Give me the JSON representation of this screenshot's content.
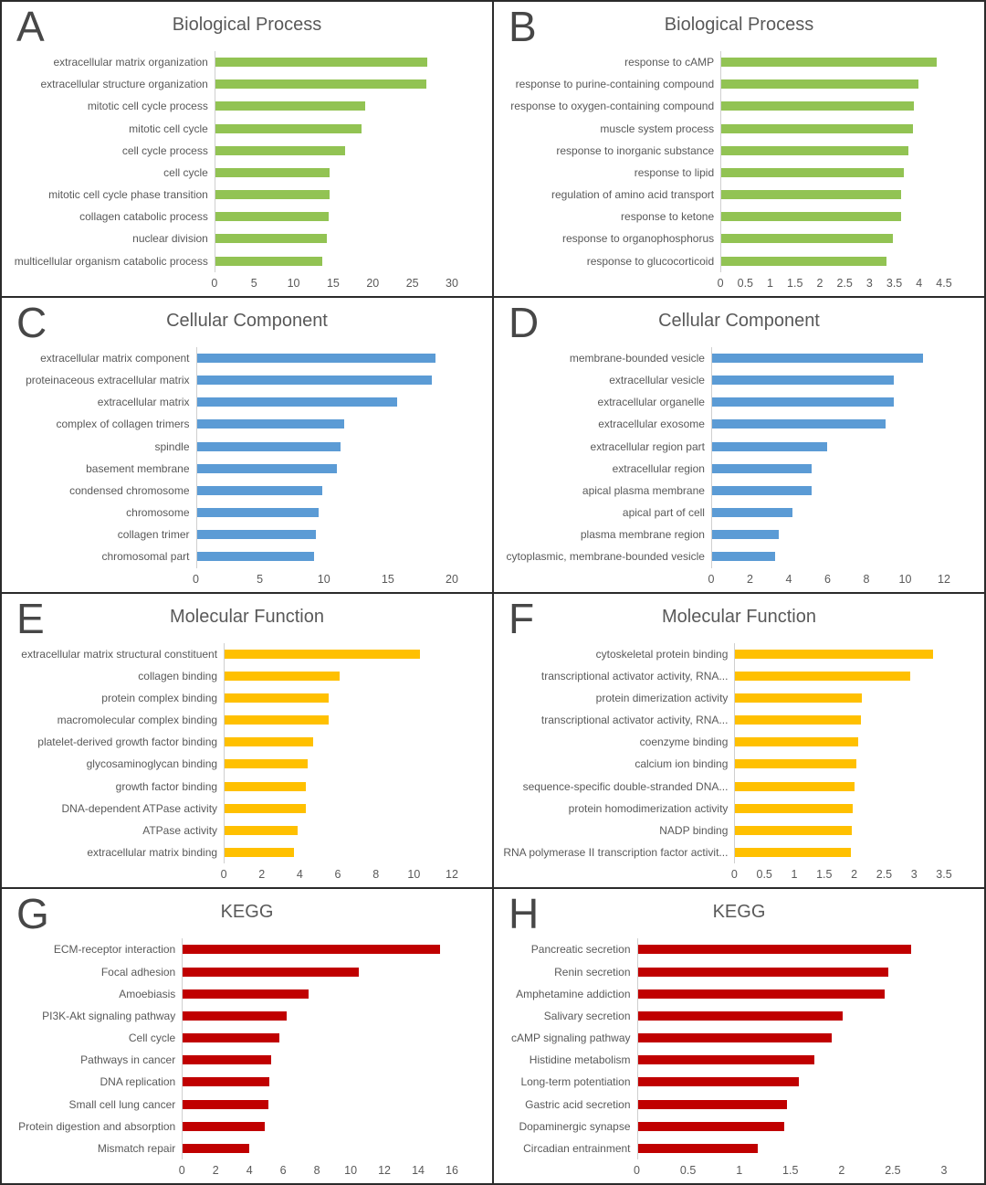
{
  "figure": {
    "kind": "go-kegg-enrichment-figure"
  },
  "chart_data": [
    {
      "panel": "A",
      "type": "bar",
      "orientation": "horizontal",
      "title": "Biological Process",
      "color": "#92C353",
      "categories": [
        "extracellular matrix organization",
        "extracellular structure organization",
        "mitotic cell cycle process",
        "mitotic cell cycle",
        "cell cycle process",
        "cell cycle",
        "mitotic cell cycle phase transition",
        "collagen catabolic process",
        "nuclear division",
        "multicellular organism catabolic process"
      ],
      "values": [
        26.9,
        26.8,
        19.0,
        18.6,
        16.5,
        14.5,
        14.5,
        14.4,
        14.2,
        13.6
      ],
      "xlim": [
        0,
        30
      ],
      "xticks": [
        0,
        5,
        10,
        15,
        20,
        25,
        30
      ],
      "xtick_labels": [
        "0",
        "5",
        "10",
        "15",
        "20",
        "25",
        "30"
      ],
      "grid": false,
      "legend": false,
      "label_col_pct": 43
    },
    {
      "panel": "B",
      "type": "bar",
      "orientation": "horizontal",
      "title": "Biological Process",
      "color": "#92C353",
      "categories": [
        "response to cAMP",
        "response to purine-containing compound",
        "response to oxygen-containing compound",
        "muscle system process",
        "response to inorganic substance",
        "response to lipid",
        "regulation of amino acid transport",
        "response to ketone",
        "response to organophosphorus",
        "response to glucocorticoid"
      ],
      "values": [
        4.35,
        3.98,
        3.9,
        3.87,
        3.79,
        3.7,
        3.64,
        3.64,
        3.47,
        3.35
      ],
      "xlim": [
        0,
        4.5
      ],
      "xticks": [
        0,
        0.5,
        1,
        1.5,
        2,
        2.5,
        3,
        3.5,
        4,
        4.5
      ],
      "xtick_labels": [
        "0",
        "0.5",
        "1",
        "1.5",
        "2",
        "2.5",
        "3",
        "3.5",
        "4",
        "4.5"
      ],
      "grid": false,
      "legend": false,
      "label_col_pct": 46
    },
    {
      "panel": "C",
      "type": "bar",
      "orientation": "horizontal",
      "title": "Cellular Component",
      "color": "#5B9BD5",
      "categories": [
        "extracellular matrix component",
        "proteinaceous extracellular matrix",
        "extracellular matrix",
        "complex of collagen trimers",
        "spindle",
        "basement membrane",
        "condensed chromosome",
        "chromosome",
        "collagen trimer",
        "chromosomal part"
      ],
      "values": [
        18.7,
        18.4,
        15.7,
        11.6,
        11.3,
        11.0,
        9.9,
        9.6,
        9.4,
        9.2
      ],
      "xlim": [
        0,
        20
      ],
      "xticks": [
        0,
        5,
        10,
        15,
        20
      ],
      "xtick_labels": [
        "0",
        "5",
        "10",
        "15",
        "20"
      ],
      "grid": false,
      "legend": false,
      "label_col_pct": 39
    },
    {
      "panel": "D",
      "type": "bar",
      "orientation": "horizontal",
      "title": "Cellular Component",
      "color": "#5B9BD5",
      "categories": [
        "membrane-bounded vesicle",
        "extracellular vesicle",
        "extracellular organelle",
        "extracellular exosome",
        "extracellular region part",
        "extracellular region",
        "apical plasma membrane",
        "apical part of cell",
        "plasma membrane region",
        "cytoplasmic, membrane-bounded vesicle"
      ],
      "values": [
        10.9,
        9.4,
        9.4,
        9.0,
        6.0,
        5.2,
        5.2,
        4.2,
        3.5,
        3.3
      ],
      "xlim": [
        0,
        12
      ],
      "xticks": [
        0,
        2,
        4,
        6,
        8,
        10,
        12
      ],
      "xtick_labels": [
        "0",
        "2",
        "4",
        "6",
        "8",
        "10",
        "12"
      ],
      "grid": false,
      "legend": false,
      "label_col_pct": 44
    },
    {
      "panel": "E",
      "type": "bar",
      "orientation": "horizontal",
      "title": "Molecular Function",
      "color": "#FFC000",
      "categories": [
        "extracellular matrix structural constituent",
        "collagen binding",
        "protein complex binding",
        "macromolecular complex binding",
        "platelet-derived growth factor binding",
        "glycosaminoglycan binding",
        "growth factor binding",
        "DNA-dependent ATPase activity",
        "ATPase activity",
        "extracellular matrix binding"
      ],
      "values": [
        10.3,
        6.1,
        5.5,
        5.5,
        4.7,
        4.4,
        4.3,
        4.3,
        3.9,
        3.7
      ],
      "xlim": [
        0,
        12
      ],
      "xticks": [
        0,
        2,
        4,
        6,
        8,
        10,
        12
      ],
      "xtick_labels": [
        "0",
        "2",
        "4",
        "6",
        "8",
        "10",
        "12"
      ],
      "grid": false,
      "legend": false,
      "label_col_pct": 45
    },
    {
      "panel": "F",
      "type": "bar",
      "orientation": "horizontal",
      "title": "Molecular Function",
      "color": "#FFC000",
      "categories": [
        "cytoskeletal protein binding",
        "transcriptional activator activity, RNA...",
        "protein dimerization activity",
        "transcriptional activator activity, RNA...",
        "coenzyme binding",
        "calcium ion binding",
        "sequence-specific double-stranded DNA...",
        "protein homodimerization activity",
        "NADP binding",
        "RNA polymerase II transcription factor activit..."
      ],
      "values": [
        3.32,
        2.93,
        2.13,
        2.11,
        2.06,
        2.04,
        2.0,
        1.98,
        1.96,
        1.94
      ],
      "xlim": [
        0,
        3.5
      ],
      "xticks": [
        0,
        0.5,
        1,
        1.5,
        2,
        2.5,
        3,
        3.5
      ],
      "xtick_labels": [
        "0",
        "0.5",
        "1",
        "1.5",
        "2",
        "2.5",
        "3",
        "3.5"
      ],
      "grid": false,
      "legend": false,
      "label_col_pct": 49
    },
    {
      "panel": "G",
      "type": "bar",
      "orientation": "horizontal",
      "title": "KEGG",
      "color": "#C00000",
      "categories": [
        "ECM-receptor interaction",
        "Focal adhesion",
        "Amoebiasis",
        "PI3K-Akt signaling pathway",
        "Cell cycle",
        "Pathways in cancer",
        "DNA replication",
        "Small cell lung cancer",
        "Protein digestion and absorption",
        "Mismatch repair"
      ],
      "values": [
        15.3,
        10.5,
        7.5,
        6.2,
        5.8,
        5.3,
        5.2,
        5.1,
        4.9,
        4.0
      ],
      "xlim": [
        0,
        16
      ],
      "xticks": [
        0,
        2,
        4,
        6,
        8,
        10,
        12,
        14,
        16
      ],
      "xtick_labels": [
        "0",
        "2",
        "4",
        "6",
        "8",
        "10",
        "12",
        "14",
        "16"
      ],
      "grid": false,
      "legend": false,
      "label_col_pct": 36
    },
    {
      "panel": "H",
      "type": "bar",
      "orientation": "horizontal",
      "title": "KEGG",
      "color": "#C00000",
      "categories": [
        "Pancreatic secretion",
        "Renin secretion",
        "Amphetamine addiction",
        "Salivary secretion",
        "cAMP signaling pathway",
        "Histidine metabolism",
        "Long-term potentiation",
        "Gastric acid secretion",
        "Dopaminergic synapse",
        "Circadian entrainment"
      ],
      "values": [
        2.68,
        2.46,
        2.42,
        2.01,
        1.9,
        1.73,
        1.58,
        1.47,
        1.44,
        1.18
      ],
      "xlim": [
        0,
        3
      ],
      "xticks": [
        0,
        0.5,
        1,
        1.5,
        2,
        2.5,
        3
      ],
      "xtick_labels": [
        "0",
        "0.5",
        "1",
        "1.5",
        "2",
        "2.5",
        "3"
      ],
      "grid": false,
      "legend": false,
      "label_col_pct": 28
    }
  ]
}
